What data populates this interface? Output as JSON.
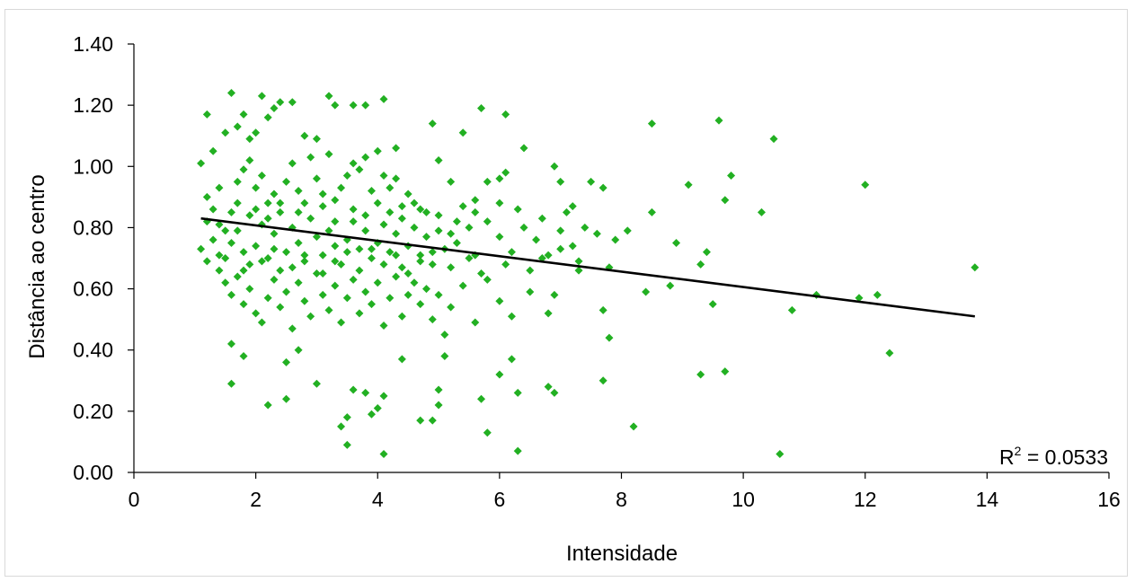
{
  "chart_data": {
    "type": "scatter",
    "title": "",
    "xlabel": "Intensidade",
    "ylabel": "Distância ao centro",
    "xlim": [
      0,
      16
    ],
    "ylim": [
      0.0,
      1.4
    ],
    "x_ticks": [
      "0",
      "2",
      "4",
      "6",
      "8",
      "10",
      "12",
      "14",
      "16"
    ],
    "y_ticks": [
      "0.00",
      "0.20",
      "0.40",
      "0.60",
      "0.80",
      "1.00",
      "1.20",
      "1.40"
    ],
    "grid": false,
    "marker_color": "#22b022",
    "trendline": {
      "type": "linear",
      "color": "#000000",
      "x": [
        1.1,
        13.8
      ],
      "y": [
        0.83,
        0.51
      ]
    },
    "r2_label": "R",
    "r2_sup": "2",
    "r2_value": " = 0.0533",
    "series": [
      {
        "points": [
          [
            1.1,
            1.01
          ],
          [
            1.2,
            1.17
          ],
          [
            1.3,
            1.05
          ],
          [
            1.4,
            0.93
          ],
          [
            1.5,
            1.11
          ],
          [
            1.6,
            1.24
          ],
          [
            1.7,
            1.13
          ],
          [
            1.8,
            1.17
          ],
          [
            1.9,
            1.09
          ],
          [
            2.0,
            1.11
          ],
          [
            2.1,
            1.23
          ],
          [
            2.2,
            1.16
          ],
          [
            2.3,
            1.19
          ],
          [
            2.4,
            1.21
          ],
          [
            2.6,
            1.21
          ],
          [
            2.8,
            1.1
          ],
          [
            3.0,
            1.09
          ],
          [
            3.2,
            1.23
          ],
          [
            3.3,
            1.2
          ],
          [
            3.6,
            1.2
          ],
          [
            3.8,
            1.2
          ],
          [
            4.1,
            1.22
          ],
          [
            4.3,
            1.06
          ],
          [
            4.9,
            1.14
          ],
          [
            5.4,
            1.11
          ],
          [
            5.7,
            1.19
          ],
          [
            6.1,
            1.17
          ],
          [
            6.4,
            1.06
          ],
          [
            8.5,
            1.14
          ],
          [
            9.6,
            1.15
          ],
          [
            10.5,
            1.09
          ],
          [
            12.0,
            0.94
          ],
          [
            1.2,
            0.9
          ],
          [
            1.3,
            0.86
          ],
          [
            1.4,
            0.81
          ],
          [
            1.5,
            0.79
          ],
          [
            1.6,
            0.85
          ],
          [
            1.7,
            0.95
          ],
          [
            1.8,
            0.99
          ],
          [
            1.9,
            1.02
          ],
          [
            2.0,
            0.93
          ],
          [
            2.1,
            0.97
          ],
          [
            2.2,
            0.88
          ],
          [
            2.3,
            0.91
          ],
          [
            2.4,
            0.85
          ],
          [
            2.5,
            0.95
          ],
          [
            2.6,
            1.01
          ],
          [
            2.7,
            0.92
          ],
          [
            2.8,
            0.88
          ],
          [
            2.9,
            1.03
          ],
          [
            3.0,
            0.96
          ],
          [
            3.1,
            0.91
          ],
          [
            3.2,
            1.04
          ],
          [
            3.3,
            0.89
          ],
          [
            3.4,
            0.93
          ],
          [
            3.5,
            0.97
          ],
          [
            3.6,
            1.01
          ],
          [
            3.7,
            0.99
          ],
          [
            3.8,
            1.03
          ],
          [
            3.9,
            0.92
          ],
          [
            4.0,
            1.05
          ],
          [
            4.1,
            0.97
          ],
          [
            4.2,
            0.93
          ],
          [
            4.3,
            0.96
          ],
          [
            4.4,
            0.87
          ],
          [
            4.5,
            0.91
          ],
          [
            4.6,
            0.88
          ],
          [
            4.8,
            0.85
          ],
          [
            5.0,
            1.02
          ],
          [
            5.2,
            0.95
          ],
          [
            5.4,
            0.87
          ],
          [
            5.6,
            0.89
          ],
          [
            5.8,
            0.95
          ],
          [
            6.0,
            0.96
          ],
          [
            6.1,
            0.98
          ],
          [
            6.3,
            0.86
          ],
          [
            6.9,
            1.0
          ],
          [
            7.0,
            0.95
          ],
          [
            7.2,
            0.87
          ],
          [
            7.5,
            0.95
          ],
          [
            7.7,
            0.93
          ],
          [
            8.5,
            0.85
          ],
          [
            9.1,
            0.94
          ],
          [
            9.7,
            0.89
          ],
          [
            9.8,
            0.97
          ],
          [
            10.3,
            0.85
          ],
          [
            1.1,
            0.73
          ],
          [
            1.2,
            0.69
          ],
          [
            1.3,
            0.76
          ],
          [
            1.4,
            0.66
          ],
          [
            1.5,
            0.7
          ],
          [
            1.6,
            0.75
          ],
          [
            1.7,
            0.79
          ],
          [
            1.8,
            0.72
          ],
          [
            1.9,
            0.68
          ],
          [
            2.0,
            0.74
          ],
          [
            2.1,
            0.81
          ],
          [
            2.2,
            0.7
          ],
          [
            2.3,
            0.78
          ],
          [
            2.4,
            0.66
          ],
          [
            2.5,
            0.72
          ],
          [
            2.6,
            0.8
          ],
          [
            2.7,
            0.75
          ],
          [
            2.8,
            0.69
          ],
          [
            2.9,
            0.83
          ],
          [
            3.0,
            0.77
          ],
          [
            3.1,
            0.71
          ],
          [
            3.2,
            0.79
          ],
          [
            3.3,
            0.74
          ],
          [
            3.4,
            0.68
          ],
          [
            3.5,
            0.76
          ],
          [
            3.6,
            0.82
          ],
          [
            3.7,
            0.73
          ],
          [
            3.8,
            0.79
          ],
          [
            3.9,
            0.7
          ],
          [
            4.0,
            0.75
          ],
          [
            4.1,
            0.81
          ],
          [
            4.2,
            0.72
          ],
          [
            4.3,
            0.78
          ],
          [
            4.4,
            0.67
          ],
          [
            4.5,
            0.74
          ],
          [
            4.6,
            0.8
          ],
          [
            4.7,
            0.71
          ],
          [
            4.8,
            0.77
          ],
          [
            4.9,
            0.68
          ],
          [
            5.0,
            0.79
          ],
          [
            5.1,
            0.73
          ],
          [
            5.2,
            0.78
          ],
          [
            5.3,
            0.75
          ],
          [
            5.5,
            0.8
          ],
          [
            5.6,
            0.71
          ],
          [
            5.8,
            0.82
          ],
          [
            6.0,
            0.77
          ],
          [
            6.2,
            0.72
          ],
          [
            6.4,
            0.8
          ],
          [
            6.6,
            0.76
          ],
          [
            6.8,
            0.71
          ],
          [
            7.0,
            0.79
          ],
          [
            7.2,
            0.74
          ],
          [
            7.4,
            0.8
          ],
          [
            7.6,
            0.78
          ],
          [
            7.9,
            0.76
          ],
          [
            8.1,
            0.79
          ],
          [
            8.9,
            0.75
          ],
          [
            9.4,
            0.72
          ],
          [
            1.5,
            0.62
          ],
          [
            1.6,
            0.58
          ],
          [
            1.7,
            0.64
          ],
          [
            1.8,
            0.55
          ],
          [
            1.9,
            0.6
          ],
          [
            2.0,
            0.52
          ],
          [
            2.1,
            0.49
          ],
          [
            2.2,
            0.57
          ],
          [
            2.3,
            0.63
          ],
          [
            2.4,
            0.54
          ],
          [
            2.5,
            0.59
          ],
          [
            2.6,
            0.47
          ],
          [
            2.7,
            0.62
          ],
          [
            2.8,
            0.56
          ],
          [
            2.9,
            0.51
          ],
          [
            3.0,
            0.65
          ],
          [
            3.1,
            0.58
          ],
          [
            3.2,
            0.53
          ],
          [
            3.3,
            0.61
          ],
          [
            3.4,
            0.49
          ],
          [
            3.5,
            0.57
          ],
          [
            3.6,
            0.63
          ],
          [
            3.7,
            0.52
          ],
          [
            3.8,
            0.59
          ],
          [
            3.9,
            0.55
          ],
          [
            4.0,
            0.62
          ],
          [
            4.1,
            0.48
          ],
          [
            4.2,
            0.57
          ],
          [
            4.3,
            0.64
          ],
          [
            4.4,
            0.51
          ],
          [
            4.5,
            0.58
          ],
          [
            4.6,
            0.62
          ],
          [
            4.7,
            0.55
          ],
          [
            4.8,
            0.6
          ],
          [
            4.9,
            0.5
          ],
          [
            5.0,
            0.58
          ],
          [
            5.1,
            0.45
          ],
          [
            5.2,
            0.54
          ],
          [
            5.4,
            0.61
          ],
          [
            5.6,
            0.49
          ],
          [
            5.8,
            0.63
          ],
          [
            6.0,
            0.56
          ],
          [
            6.2,
            0.51
          ],
          [
            6.5,
            0.59
          ],
          [
            6.8,
            0.52
          ],
          [
            6.9,
            0.58
          ],
          [
            7.3,
            0.66
          ],
          [
            7.7,
            0.53
          ],
          [
            7.8,
            0.67
          ],
          [
            8.4,
            0.59
          ],
          [
            8.8,
            0.61
          ],
          [
            9.3,
            0.68
          ],
          [
            9.5,
            0.55
          ],
          [
            11.2,
            0.58
          ],
          [
            11.9,
            0.57
          ],
          [
            12.2,
            0.58
          ],
          [
            13.8,
            0.67
          ],
          [
            1.6,
            0.42
          ],
          [
            1.6,
            0.29
          ],
          [
            1.8,
            0.38
          ],
          [
            2.2,
            0.22
          ],
          [
            2.5,
            0.24
          ],
          [
            2.5,
            0.36
          ],
          [
            2.7,
            0.4
          ],
          [
            3.0,
            0.29
          ],
          [
            3.4,
            0.15
          ],
          [
            3.5,
            0.18
          ],
          [
            3.5,
            0.09
          ],
          [
            3.6,
            0.27
          ],
          [
            3.8,
            0.26
          ],
          [
            3.9,
            0.19
          ],
          [
            4.0,
            0.21
          ],
          [
            4.1,
            0.25
          ],
          [
            4.1,
            0.06
          ],
          [
            4.4,
            0.37
          ],
          [
            4.7,
            0.17
          ],
          [
            4.9,
            0.17
          ],
          [
            5.0,
            0.22
          ],
          [
            5.0,
            0.27
          ],
          [
            5.1,
            0.38
          ],
          [
            5.7,
            0.24
          ],
          [
            5.8,
            0.13
          ],
          [
            6.0,
            0.32
          ],
          [
            6.2,
            0.37
          ],
          [
            6.3,
            0.26
          ],
          [
            6.3,
            0.07
          ],
          [
            6.8,
            0.28
          ],
          [
            6.9,
            0.26
          ],
          [
            7.7,
            0.3
          ],
          [
            7.8,
            0.44
          ],
          [
            8.2,
            0.15
          ],
          [
            9.3,
            0.32
          ],
          [
            9.7,
            0.33
          ],
          [
            10.6,
            0.06
          ],
          [
            10.8,
            0.53
          ],
          [
            12.4,
            0.39
          ],
          [
            1.2,
            0.82
          ],
          [
            1.7,
            0.88
          ],
          [
            1.9,
            0.84
          ],
          [
            2.0,
            0.86
          ],
          [
            2.2,
            0.83
          ],
          [
            2.4,
            0.88
          ],
          [
            2.7,
            0.85
          ],
          [
            3.1,
            0.87
          ],
          [
            3.3,
            0.82
          ],
          [
            3.6,
            0.86
          ],
          [
            3.8,
            0.84
          ],
          [
            4.0,
            0.88
          ],
          [
            4.2,
            0.85
          ],
          [
            4.4,
            0.83
          ],
          [
            4.7,
            0.86
          ],
          [
            5.0,
            0.84
          ],
          [
            5.3,
            0.82
          ],
          [
            5.6,
            0.85
          ],
          [
            6.0,
            0.88
          ],
          [
            6.7,
            0.83
          ],
          [
            7.1,
            0.85
          ],
          [
            1.4,
            0.71
          ],
          [
            1.8,
            0.66
          ],
          [
            2.1,
            0.69
          ],
          [
            2.3,
            0.73
          ],
          [
            2.6,
            0.67
          ],
          [
            2.8,
            0.71
          ],
          [
            3.1,
            0.65
          ],
          [
            3.3,
            0.69
          ],
          [
            3.5,
            0.72
          ],
          [
            3.7,
            0.66
          ],
          [
            3.9,
            0.73
          ],
          [
            4.1,
            0.68
          ],
          [
            4.3,
            0.71
          ],
          [
            4.5,
            0.65
          ],
          [
            4.7,
            0.69
          ],
          [
            4.9,
            0.72
          ],
          [
            5.2,
            0.67
          ],
          [
            5.5,
            0.7
          ],
          [
            5.7,
            0.65
          ],
          [
            6.1,
            0.68
          ],
          [
            6.5,
            0.66
          ],
          [
            6.7,
            0.7
          ],
          [
            7.0,
            0.73
          ],
          [
            7.3,
            0.69
          ]
        ]
      }
    ]
  }
}
